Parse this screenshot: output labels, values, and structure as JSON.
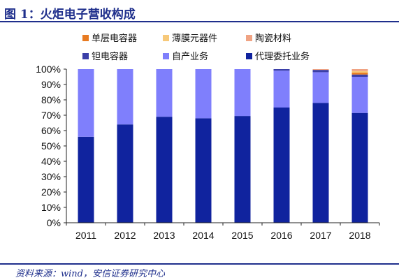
{
  "header": {
    "figure_label": "图 1：",
    "title": "火炬电子营收构成"
  },
  "footer": {
    "source": "资料来源：wind，安信证券研究中心"
  },
  "chart_data": {
    "type": "bar",
    "stacked": true,
    "categories": [
      "2011",
      "2012",
      "2013",
      "2014",
      "2015",
      "2016",
      "2017",
      "2018"
    ],
    "series": [
      {
        "name": "代理委托业务",
        "color": "#10239e",
        "values": [
          56,
          64,
          69,
          68,
          69.5,
          75,
          78,
          71.5
        ]
      },
      {
        "name": "自产业务",
        "color": "#7f7ffc",
        "values": [
          44,
          36,
          31,
          32,
          30.5,
          24,
          20,
          23.5
        ]
      },
      {
        "name": "钽电容器",
        "color": "#3b3fa8",
        "values": [
          0,
          0,
          0,
          0,
          0,
          1,
          1.5,
          1.5
        ]
      },
      {
        "name": "单层电容器",
        "color": "#e87b22",
        "values": [
          0,
          0,
          0,
          0,
          0,
          0,
          0,
          1.2
        ]
      },
      {
        "name": "薄膜元器件",
        "color": "#f7c97a",
        "values": [
          0,
          0,
          0,
          0,
          0,
          0,
          0,
          1.0
        ]
      },
      {
        "name": "陶瓷材料",
        "color": "#f0a383",
        "values": [
          0,
          0,
          0,
          0,
          0,
          0,
          0.5,
          1.3
        ]
      }
    ],
    "legend": {
      "placement": "top",
      "order": [
        "单层电容器",
        "薄膜元器件",
        "陶瓷材料",
        "钽电容器",
        "自产业务",
        "代理委托业务"
      ]
    },
    "y_ticks": [
      "0%",
      "10%",
      "20%",
      "30%",
      "40%",
      "50%",
      "60%",
      "70%",
      "80%",
      "90%",
      "100%"
    ],
    "ylim": [
      0,
      100
    ],
    "grid": false
  }
}
